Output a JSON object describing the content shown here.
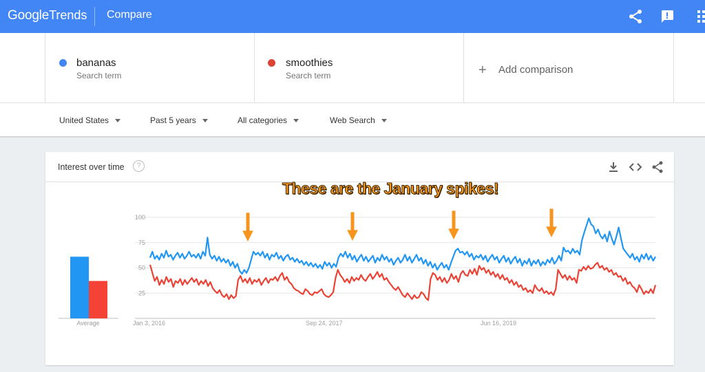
{
  "app": {
    "logo_word1": "Google",
    "logo_word2": "Trends",
    "title": "Compare"
  },
  "topbar": {
    "icons": [
      "share-icon",
      "feedback-icon",
      "apps-icon"
    ]
  },
  "terms": [
    {
      "name": "bananas",
      "sub": "Search term",
      "color": "#4285f4"
    },
    {
      "name": "smoothies",
      "sub": "Search term",
      "color": "#db4437"
    }
  ],
  "add_comparison": {
    "label": "Add comparison"
  },
  "filters": {
    "region": "United States",
    "time": "Past 5 years",
    "category": "All categories",
    "search_type": "Web Search"
  },
  "card": {
    "title": "Interest over time",
    "help": "?",
    "icons": [
      "download-icon",
      "embed-icon",
      "share-icon"
    ]
  },
  "annotation": "These are the January spikes!",
  "chart_data": {
    "type": "line",
    "y_ticks": [
      "100",
      "75",
      "50",
      "25"
    ],
    "ylim": [
      0,
      100
    ],
    "x_ticks": [
      "Jan 3, 2016",
      "Sep 24, 2017",
      "Jun 16, 2019"
    ],
    "average_label": "Average",
    "averages": [
      {
        "term": "bananas",
        "value": 61,
        "color": "#2196f3"
      },
      {
        "term": "smoothies",
        "value": 37,
        "color": "#f44336"
      }
    ],
    "series": [
      {
        "name": "bananas",
        "color": "#2196f3",
        "values": [
          60,
          66,
          59,
          62,
          58,
          64,
          60,
          67,
          61,
          63,
          58,
          62,
          65,
          60,
          64,
          59,
          62,
          66,
          61,
          63,
          60,
          64,
          59,
          66,
          62,
          80,
          63,
          59,
          62,
          57,
          61,
          56,
          59,
          55,
          58,
          52,
          56,
          50,
          54,
          47,
          44,
          48,
          45,
          50,
          58,
          66,
          63,
          65,
          62,
          66,
          60,
          64,
          58,
          63,
          61,
          65,
          59,
          62,
          57,
          61,
          63,
          58,
          60,
          56,
          59,
          55,
          57,
          53,
          56,
          52,
          55,
          51,
          54,
          50,
          53,
          49,
          56,
          52,
          55,
          50,
          54,
          51,
          60,
          64,
          61,
          66,
          60,
          64,
          58,
          62,
          56,
          60,
          63,
          57,
          61,
          56,
          59,
          62,
          55,
          60,
          57,
          63,
          58,
          61,
          56,
          59,
          53,
          57,
          60,
          55,
          58,
          63,
          57,
          61,
          55,
          59,
          63,
          57,
          60,
          54,
          58,
          52,
          56,
          50,
          54,
          48,
          52,
          55,
          50,
          53,
          48,
          55,
          61,
          67,
          69,
          65,
          66,
          63,
          66,
          61,
          64,
          58,
          62,
          60,
          63,
          58,
          62,
          56,
          60,
          63,
          58,
          61,
          55,
          59,
          62,
          56,
          60,
          54,
          58,
          61,
          55,
          59,
          52,
          57,
          54,
          59,
          52,
          57,
          54,
          58,
          52,
          56,
          53,
          58,
          55,
          60,
          54,
          57,
          62,
          57,
          70,
          66,
          67,
          64,
          69,
          65,
          67,
          63,
          77,
          85,
          92,
          99,
          93,
          91,
          84,
          88,
          82,
          79,
          83,
          76,
          86,
          79,
          73,
          81,
          90,
          79,
          69,
          66,
          63,
          60,
          64,
          58,
          61,
          56,
          63,
          59,
          64,
          58,
          62,
          57,
          61
        ]
      },
      {
        "name": "smoothies",
        "color": "#ea4335",
        "values": [
          53,
          45,
          37,
          41,
          33,
          38,
          34,
          41,
          36,
          39,
          31,
          37,
          35,
          39,
          33,
          38,
          34,
          37,
          40,
          36,
          39,
          33,
          37,
          34,
          38,
          32,
          36,
          30,
          27,
          25,
          28,
          23,
          21,
          24,
          19,
          23,
          20,
          22,
          38,
          42,
          36,
          39,
          35,
          40,
          34,
          38,
          36,
          39,
          33,
          37,
          40,
          35,
          39,
          38,
          41,
          37,
          42,
          45,
          38,
          41,
          36,
          34,
          30,
          28,
          27,
          25,
          24,
          29,
          27,
          24,
          23,
          26,
          25,
          27,
          29,
          24,
          22,
          21,
          23,
          26,
          40,
          48,
          43,
          40,
          36,
          39,
          35,
          41,
          37,
          40,
          38,
          43,
          39,
          37,
          41,
          44,
          39,
          42,
          46,
          41,
          44,
          38,
          40,
          36,
          33,
          30,
          28,
          31,
          27,
          23,
          21,
          25,
          22,
          19,
          23,
          20,
          21,
          26,
          24,
          20,
          18,
          39,
          45,
          43,
          38,
          41,
          36,
          40,
          35,
          38,
          44,
          39,
          42,
          36,
          44,
          47,
          43,
          42,
          48,
          44,
          49,
          43,
          52,
          48,
          50,
          45,
          48,
          43,
          46,
          41,
          44,
          39,
          43,
          38,
          40,
          35,
          38,
          33,
          36,
          31,
          33,
          28,
          30,
          26,
          28,
          25,
          33,
          29,
          27,
          30,
          25,
          27,
          24,
          26,
          23,
          29,
          48,
          44,
          40,
          43,
          38,
          42,
          38,
          40,
          35,
          48,
          47,
          51,
          48,
          52,
          49,
          50,
          53,
          55,
          50,
          52,
          48,
          50,
          46,
          48,
          43,
          45,
          41,
          42,
          37,
          40,
          34,
          36,
          32,
          30,
          26,
          33,
          29,
          24,
          27,
          25,
          29,
          25,
          33
        ]
      }
    ]
  }
}
